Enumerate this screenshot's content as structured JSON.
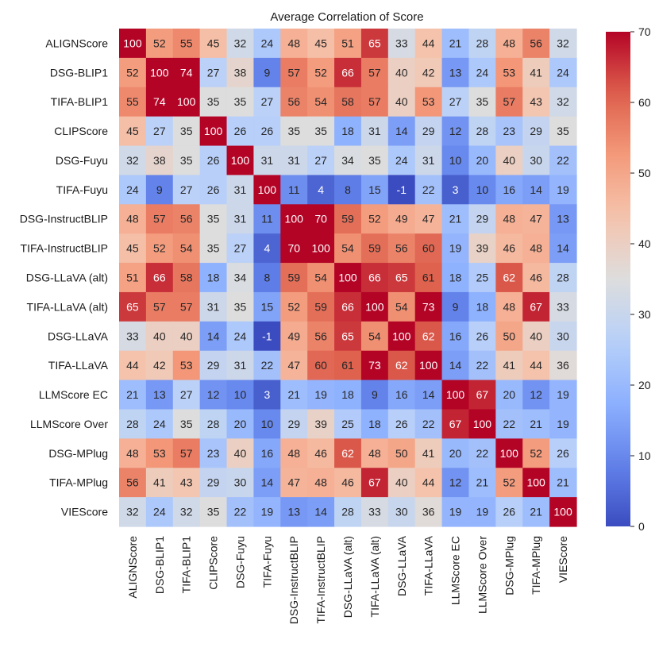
{
  "chart_data": {
    "type": "heatmap",
    "title": "Average Correlation of Score",
    "xlabel": "",
    "ylabel": "",
    "labels": [
      "ALIGNScore",
      "DSG-BLIP1",
      "TIFA-BLIP1",
      "CLIPScore",
      "DSG-Fuyu",
      "TIFA-Fuyu",
      "DSG-InstructBLIP",
      "TIFA-InstructBLIP",
      "DSG-LLaVA (alt)",
      "TIFA-LLaVA (alt)",
      "DSG-LLaVA",
      "TIFA-LLaVA",
      "LLMScore EC",
      "LLMScore Over",
      "DSG-MPlug",
      "TIFA-MPlug",
      "VIEScore"
    ],
    "matrix": [
      [
        100,
        52,
        55,
        45,
        32,
        24,
        48,
        45,
        51,
        65,
        33,
        44,
        21,
        28,
        48,
        56,
        32
      ],
      [
        52,
        100,
        74,
        27,
        38,
        9,
        57,
        52,
        66,
        57,
        40,
        42,
        13,
        24,
        53,
        41,
        24
      ],
      [
        55,
        74,
        100,
        35,
        35,
        27,
        56,
        54,
        58,
        57,
        40,
        53,
        27,
        35,
        57,
        43,
        32
      ],
      [
        45,
        27,
        35,
        100,
        26,
        26,
        35,
        35,
        18,
        31,
        14,
        29,
        12,
        28,
        23,
        29,
        35
      ],
      [
        32,
        38,
        35,
        26,
        100,
        31,
        31,
        27,
        34,
        35,
        24,
        31,
        10,
        20,
        40,
        30,
        22
      ],
      [
        24,
        9,
        27,
        26,
        31,
        100,
        11,
        4,
        8,
        15,
        -1,
        22,
        3,
        10,
        16,
        14,
        19
      ],
      [
        48,
        57,
        56,
        35,
        31,
        11,
        100,
        70,
        59,
        52,
        49,
        47,
        21,
        29,
        48,
        47,
        13
      ],
      [
        45,
        52,
        54,
        35,
        27,
        4,
        70,
        100,
        54,
        59,
        56,
        60,
        19,
        39,
        46,
        48,
        14
      ],
      [
        51,
        66,
        58,
        18,
        34,
        8,
        59,
        54,
        100,
        66,
        65,
        61,
        18,
        25,
        62,
        46,
        28
      ],
      [
        65,
        57,
        57,
        31,
        35,
        15,
        52,
        59,
        66,
        100,
        54,
        73,
        9,
        18,
        48,
        67,
        33
      ],
      [
        33,
        40,
        40,
        14,
        24,
        -1,
        49,
        56,
        65,
        54,
        100,
        62,
        16,
        26,
        50,
        40,
        30
      ],
      [
        44,
        42,
        53,
        29,
        31,
        22,
        47,
        60,
        61,
        73,
        62,
        100,
        14,
        22,
        41,
        44,
        36
      ],
      [
        21,
        13,
        27,
        12,
        10,
        3,
        21,
        19,
        18,
        9,
        16,
        14,
        100,
        67,
        20,
        12,
        19
      ],
      [
        28,
        24,
        35,
        28,
        20,
        10,
        29,
        39,
        25,
        18,
        26,
        22,
        67,
        100,
        22,
        21,
        19
      ],
      [
        48,
        53,
        57,
        23,
        40,
        16,
        48,
        46,
        62,
        48,
        50,
        41,
        20,
        22,
        100,
        52,
        26
      ],
      [
        56,
        41,
        43,
        29,
        30,
        14,
        47,
        48,
        46,
        67,
        40,
        44,
        12,
        21,
        52,
        100,
        21
      ],
      [
        32,
        24,
        32,
        35,
        22,
        19,
        13,
        14,
        28,
        33,
        30,
        36,
        19,
        19,
        26,
        21,
        100
      ]
    ],
    "vmin": 0,
    "vmax": 70,
    "colormap": "coolwarm",
    "colorbar_ticks": [
      0,
      10,
      20,
      30,
      40,
      50,
      60,
      70
    ],
    "grid": false,
    "legend": "colorbar-right"
  }
}
